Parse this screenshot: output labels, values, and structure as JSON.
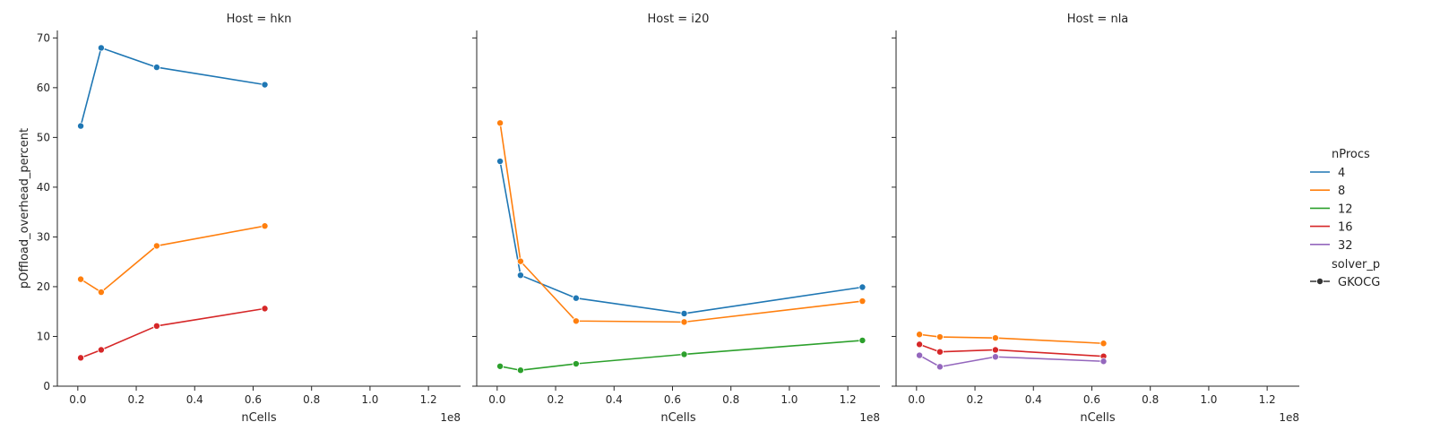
{
  "chart_data": {
    "type": "line",
    "facet_variable": "Host",
    "x_label": "nCells",
    "x_offset_label": "1e8",
    "y_label": "pOffload_overhead_percent",
    "x_range": [
      -0.07,
      1.31
    ],
    "y_range": [
      0,
      71.5
    ],
    "x_ticks": [
      0.0,
      0.2,
      0.4,
      0.6,
      0.8,
      1.0,
      1.2
    ],
    "x_tick_labels": [
      "0.0",
      "0.2",
      "0.4",
      "0.6",
      "0.8",
      "1.0",
      "1.2"
    ],
    "y_ticks": [
      0,
      10,
      20,
      30,
      40,
      50,
      60,
      70
    ],
    "y_tick_labels": [
      "0",
      "10",
      "20",
      "30",
      "40",
      "50",
      "60",
      "70"
    ],
    "grid": false,
    "legend": {
      "title": "nProcs",
      "entries": [
        {
          "label": "4",
          "color": "#1f77b4"
        },
        {
          "label": "8",
          "color": "#ff7f0e"
        },
        {
          "label": "12",
          "color": "#2ca02c"
        },
        {
          "label": "16",
          "color": "#d62728"
        },
        {
          "label": "32",
          "color": "#9467bd"
        }
      ],
      "style_title": "solver_p",
      "style_entries": [
        {
          "label": "GKOCG",
          "marker": "circle"
        }
      ],
      "placement": "right"
    },
    "panels": [
      {
        "title": "Host = hkn",
        "series": [
          {
            "nProcs": "4",
            "color": "#1f77b4",
            "x": [
              0.01,
              0.08,
              0.27,
              0.64
            ],
            "y": [
              52.3,
              68.0,
              64.1,
              60.6
            ]
          },
          {
            "nProcs": "8",
            "color": "#ff7f0e",
            "x": [
              0.01,
              0.08,
              0.27,
              0.64
            ],
            "y": [
              21.5,
              18.9,
              28.2,
              32.2
            ]
          },
          {
            "nProcs": "16",
            "color": "#d62728",
            "x": [
              0.01,
              0.08,
              0.27,
              0.64
            ],
            "y": [
              5.7,
              7.3,
              12.1,
              15.6
            ]
          }
        ]
      },
      {
        "title": "Host = i20",
        "series": [
          {
            "nProcs": "4",
            "color": "#1f77b4",
            "x": [
              0.01,
              0.08,
              0.27,
              0.64,
              1.25
            ],
            "y": [
              45.2,
              22.3,
              17.7,
              14.6,
              19.9
            ]
          },
          {
            "nProcs": "8",
            "color": "#ff7f0e",
            "x": [
              0.01,
              0.08,
              0.27,
              0.64,
              1.25
            ],
            "y": [
              52.9,
              25.1,
              13.1,
              12.9,
              17.1
            ]
          },
          {
            "nProcs": "12",
            "color": "#2ca02c",
            "x": [
              0.01,
              0.08,
              0.27,
              0.64,
              1.25
            ],
            "y": [
              4.0,
              3.2,
              4.5,
              6.4,
              9.2
            ]
          }
        ]
      },
      {
        "title": "Host = nla",
        "series": [
          {
            "nProcs": "8",
            "color": "#ff7f0e",
            "x": [
              0.01,
              0.08,
              0.27,
              0.64
            ],
            "y": [
              10.4,
              9.9,
              9.7,
              8.6
            ]
          },
          {
            "nProcs": "16",
            "color": "#d62728",
            "x": [
              0.01,
              0.08,
              0.27,
              0.64
            ],
            "y": [
              8.4,
              6.9,
              7.3,
              6.0
            ]
          },
          {
            "nProcs": "32",
            "color": "#9467bd",
            "x": [
              0.01,
              0.08,
              0.27,
              0.64
            ],
            "y": [
              6.2,
              3.9,
              5.9,
              5.0
            ]
          }
        ]
      }
    ]
  }
}
